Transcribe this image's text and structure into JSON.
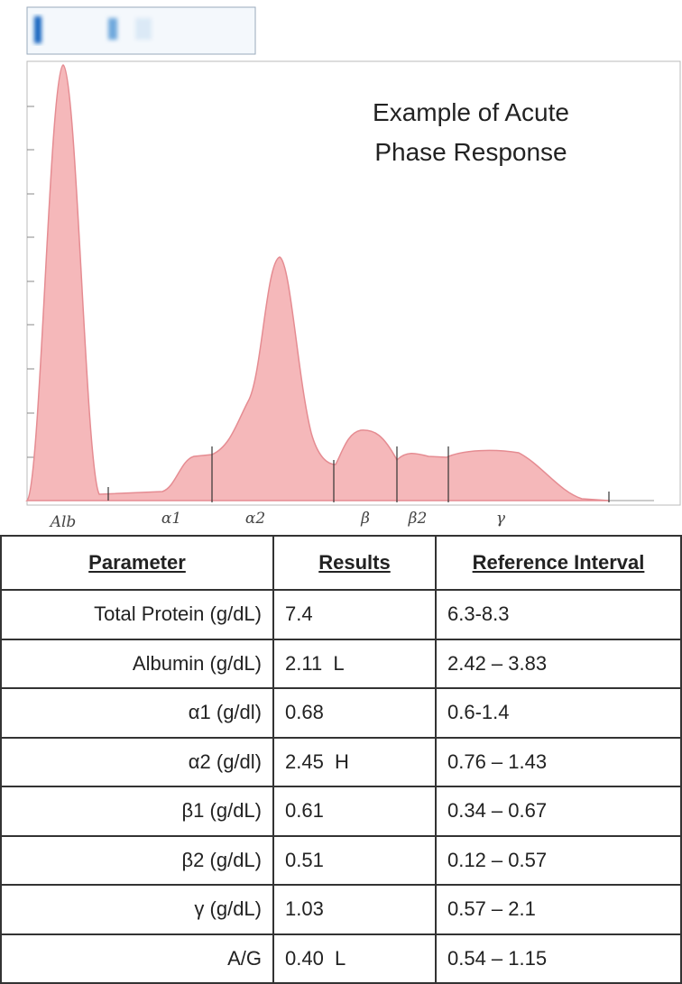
{
  "figure": {
    "title_lines": [
      "Example of Acute",
      "Phase Response"
    ],
    "fraction_labels": [
      "Alb",
      "α1",
      "α2",
      "β",
      "β2",
      "γ"
    ]
  },
  "table": {
    "header": [
      "Parameter",
      "Results",
      "Reference Interval"
    ],
    "rows": [
      [
        "Total Protein (g/dL)",
        "7.4",
        "6.3-8.3"
      ],
      [
        "Albumin (g/dL)",
        "2.11  L",
        "2.42 – 3.83"
      ],
      [
        "α1 (g/dl)",
        "0.68",
        "0.6-1.4"
      ],
      [
        "α2 (g/dl)",
        "2.45  H",
        "0.76 – 1.43"
      ],
      [
        "β1 (g/dL)",
        "0.61",
        "0.34 – 0.67"
      ],
      [
        "β2 (g/dL)",
        "0.51",
        "0.12 – 0.57"
      ],
      [
        "γ (g/dL)",
        "1.03",
        "0.57 – 2.1"
      ],
      [
        "A/G",
        "0.40  L",
        "0.54 – 1.15"
      ]
    ]
  }
}
